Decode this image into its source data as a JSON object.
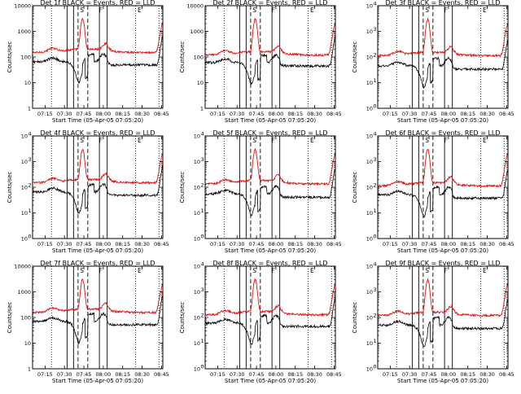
{
  "page": {
    "colors": {
      "background": "#ffffff",
      "axes": "#000000",
      "events": "#000000",
      "lld": "#dd1111"
    }
  },
  "chart_data": [
    {
      "title": "Det 1f BLACK = Events, RED = LLD",
      "scale": "decimal",
      "lld_level": 200,
      "evt_level": 65
    },
    {
      "title": "Det 2f BLACK = Events, RED = LLD",
      "scale": "decimal",
      "lld_level": 160,
      "evt_level": 60
    },
    {
      "title": "Det 3f BLACK = Events, RED = LLD",
      "scale": "power",
      "lld_level": 150,
      "evt_level": 45
    },
    {
      "title": "Det 4f BLACK = Events, RED = LLD",
      "scale": "power",
      "lld_level": 200,
      "evt_level": 65
    },
    {
      "title": "Det 5f BLACK = Events, RED = LLD",
      "scale": "power",
      "lld_level": 180,
      "evt_level": 55
    },
    {
      "title": "Det 6f BLACK = Events, RED = LLD",
      "scale": "power",
      "lld_level": 150,
      "evt_level": 50
    },
    {
      "title": "Det 7f BLACK = Events, RED = LLD",
      "scale": "decimal",
      "lld_level": 210,
      "evt_level": 70
    },
    {
      "title": "Det 8f BLACK = Events, RED = LLD",
      "scale": "power",
      "lld_level": 170,
      "evt_level": 60
    },
    {
      "title": "Det 9f BLACK = Events, RED = LLD",
      "scale": "power",
      "lld_level": 160,
      "evt_level": 50
    }
  ],
  "shared": {
    "type": "line",
    "ylabel": "Counts/sec",
    "xlabel": "Start Time (05-Apr-05 07:05:20)",
    "xtick_labels": [
      "07:15",
      "07:30",
      "07:45",
      "08:00",
      "08:15",
      "08:30",
      "08:45"
    ],
    "xtick_minutes": [
      15,
      30,
      45,
      60,
      75,
      90,
      105
    ],
    "xlim_minutes": [
      5.33,
      106
    ],
    "ylim": [
      1,
      10000
    ],
    "ytick_values": [
      1,
      10,
      100,
      1000,
      10000
    ],
    "ytick_labels_decimal": [
      "1",
      "10",
      "100",
      "1000",
      "10000"
    ],
    "ytick_labels_power_base": [
      "10",
      "10",
      "10",
      "10",
      "10"
    ],
    "ytick_labels_power_exp": [
      "0",
      "1",
      "2",
      "3",
      "4"
    ],
    "markers": [
      {
        "label": "S",
        "minute": 43.5
      },
      {
        "label": "F",
        "minute": 58
      },
      {
        "label": "E",
        "minute": 88
      }
    ],
    "solid_lines_minutes": [
      32,
      37,
      57,
      63
    ],
    "dashed_lines_minutes": [
      40.5,
      48
    ],
    "dotted_lines_minutes": [
      20,
      85,
      103
    ],
    "peak_minute": 44,
    "peak_lld": 3000,
    "end_lld": 2500
  }
}
